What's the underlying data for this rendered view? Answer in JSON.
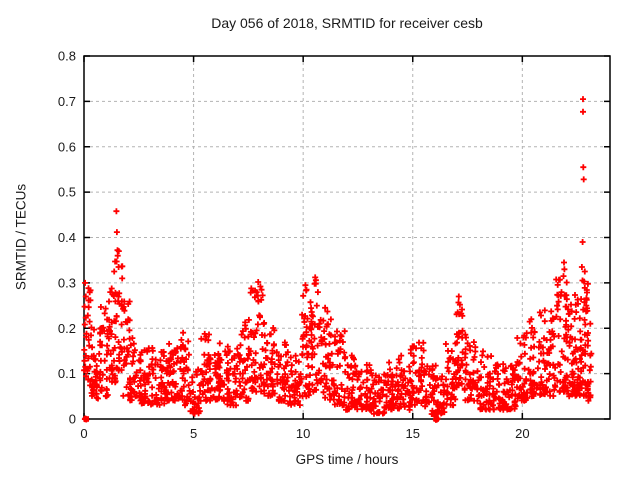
{
  "chart_data": {
    "type": "scatter",
    "title": "Day 056 of 2018, SRMTID for receiver cesb",
    "xlabel": "GPS time / hours",
    "ylabel": "SRMTID / TECUs",
    "xlim": [
      0,
      24
    ],
    "ylim": [
      0,
      0.8
    ],
    "xticks": [
      0,
      5,
      10,
      15,
      20
    ],
    "xtick_labels": [
      "0",
      "5",
      "10",
      "15",
      "20"
    ],
    "yticks": [
      0,
      0.1,
      0.2,
      0.3,
      0.4,
      0.5,
      0.6,
      0.7,
      0.8
    ],
    "ytick_labels": [
      "0",
      "0.1",
      "0.2",
      "0.3",
      "0.4",
      "0.5",
      "0.6",
      "0.7",
      "0.8"
    ],
    "grid": true,
    "legend": "none",
    "marker": "plus",
    "marker_color": "#ff0000",
    "grid_color": "#b3b3b3",
    "axis_color": "#000000",
    "series": [
      {
        "name": "SRMTID",
        "cluster_bins": [
          [
            0.0,
            0.3,
            30,
            0.07,
            0.3
          ],
          [
            0.3,
            0.7,
            35,
            0.04,
            0.22
          ],
          [
            0.7,
            1.1,
            35,
            0.05,
            0.25
          ],
          [
            1.1,
            1.45,
            35,
            0.08,
            0.31
          ],
          [
            1.45,
            1.75,
            30,
            0.1,
            0.37
          ],
          [
            1.75,
            2.1,
            30,
            0.05,
            0.26
          ],
          [
            2.1,
            2.6,
            40,
            0.04,
            0.18
          ],
          [
            2.6,
            3.2,
            45,
            0.03,
            0.16
          ],
          [
            3.2,
            3.8,
            45,
            0.03,
            0.15
          ],
          [
            3.8,
            4.4,
            45,
            0.04,
            0.17
          ],
          [
            4.4,
            4.8,
            35,
            0.03,
            0.2
          ],
          [
            4.8,
            5.3,
            30,
            0.01,
            0.12
          ],
          [
            5.3,
            5.9,
            45,
            0.04,
            0.19
          ],
          [
            5.9,
            6.5,
            45,
            0.04,
            0.17
          ],
          [
            6.5,
            7.1,
            45,
            0.03,
            0.16
          ],
          [
            7.1,
            7.6,
            40,
            0.04,
            0.22
          ],
          [
            7.6,
            8.2,
            50,
            0.06,
            0.29
          ],
          [
            8.2,
            8.7,
            40,
            0.05,
            0.22
          ],
          [
            8.7,
            9.3,
            40,
            0.04,
            0.17
          ],
          [
            9.3,
            9.9,
            40,
            0.03,
            0.15
          ],
          [
            9.9,
            10.3,
            35,
            0.05,
            0.29
          ],
          [
            10.3,
            10.8,
            40,
            0.06,
            0.31
          ],
          [
            10.8,
            11.3,
            40,
            0.04,
            0.24
          ],
          [
            11.3,
            11.9,
            45,
            0.03,
            0.2
          ],
          [
            11.9,
            12.5,
            45,
            0.02,
            0.14
          ],
          [
            12.5,
            13.1,
            45,
            0.02,
            0.12
          ],
          [
            13.1,
            13.7,
            40,
            0.01,
            0.1
          ],
          [
            13.7,
            14.3,
            45,
            0.02,
            0.13
          ],
          [
            14.3,
            14.9,
            45,
            0.02,
            0.15
          ],
          [
            14.9,
            15.5,
            40,
            0.03,
            0.17
          ],
          [
            15.5,
            16.0,
            35,
            0.01,
            0.12
          ],
          [
            16.0,
            16.5,
            30,
            0.01,
            0.12
          ],
          [
            16.5,
            17.0,
            40,
            0.03,
            0.17
          ],
          [
            17.0,
            17.4,
            35,
            0.06,
            0.26
          ],
          [
            17.4,
            18.0,
            45,
            0.04,
            0.18
          ],
          [
            18.0,
            18.6,
            45,
            0.02,
            0.16
          ],
          [
            18.6,
            19.2,
            40,
            0.02,
            0.13
          ],
          [
            19.2,
            19.7,
            35,
            0.02,
            0.12
          ],
          [
            19.7,
            20.3,
            45,
            0.04,
            0.19
          ],
          [
            20.3,
            20.9,
            45,
            0.05,
            0.22
          ],
          [
            20.9,
            21.5,
            50,
            0.05,
            0.24
          ],
          [
            21.5,
            22.1,
            55,
            0.06,
            0.33
          ],
          [
            22.1,
            22.6,
            55,
            0.05,
            0.28
          ],
          [
            22.6,
            23.0,
            55,
            0.05,
            0.33
          ],
          [
            23.0,
            23.15,
            12,
            0.04,
            0.18
          ]
        ],
        "outliers": [
          [
            0.05,
            0.3
          ],
          [
            0.08,
            0.27
          ],
          [
            1.48,
            0.458
          ],
          [
            1.5,
            0.412
          ],
          [
            1.53,
            0.372
          ],
          [
            1.42,
            0.347
          ],
          [
            1.58,
            0.335
          ],
          [
            1.38,
            0.325
          ],
          [
            7.95,
            0.302
          ],
          [
            8.05,
            0.292
          ],
          [
            8.1,
            0.285
          ],
          [
            10.1,
            0.295
          ],
          [
            10.15,
            0.285
          ],
          [
            10.55,
            0.312
          ],
          [
            10.58,
            0.306
          ],
          [
            10.52,
            0.298
          ],
          [
            10.62,
            0.25
          ],
          [
            11.0,
            0.245
          ],
          [
            17.05,
            0.235
          ],
          [
            17.1,
            0.27
          ],
          [
            17.15,
            0.252
          ],
          [
            20.8,
            0.235
          ],
          [
            20.85,
            0.228
          ],
          [
            21.88,
            0.315
          ],
          [
            21.9,
            0.345
          ],
          [
            21.92,
            0.33
          ],
          [
            22.72,
            0.335
          ],
          [
            22.75,
            0.39
          ],
          [
            22.77,
            0.705
          ],
          [
            22.77,
            0.677
          ],
          [
            22.78,
            0.555
          ],
          [
            22.8,
            0.528
          ],
          [
            22.85,
            0.325
          ],
          [
            23.1,
            0.21
          ]
        ],
        "zero_clusters": [
          [
            0.1,
            0.0
          ],
          [
            16.07,
            0.0
          ]
        ]
      }
    ]
  }
}
